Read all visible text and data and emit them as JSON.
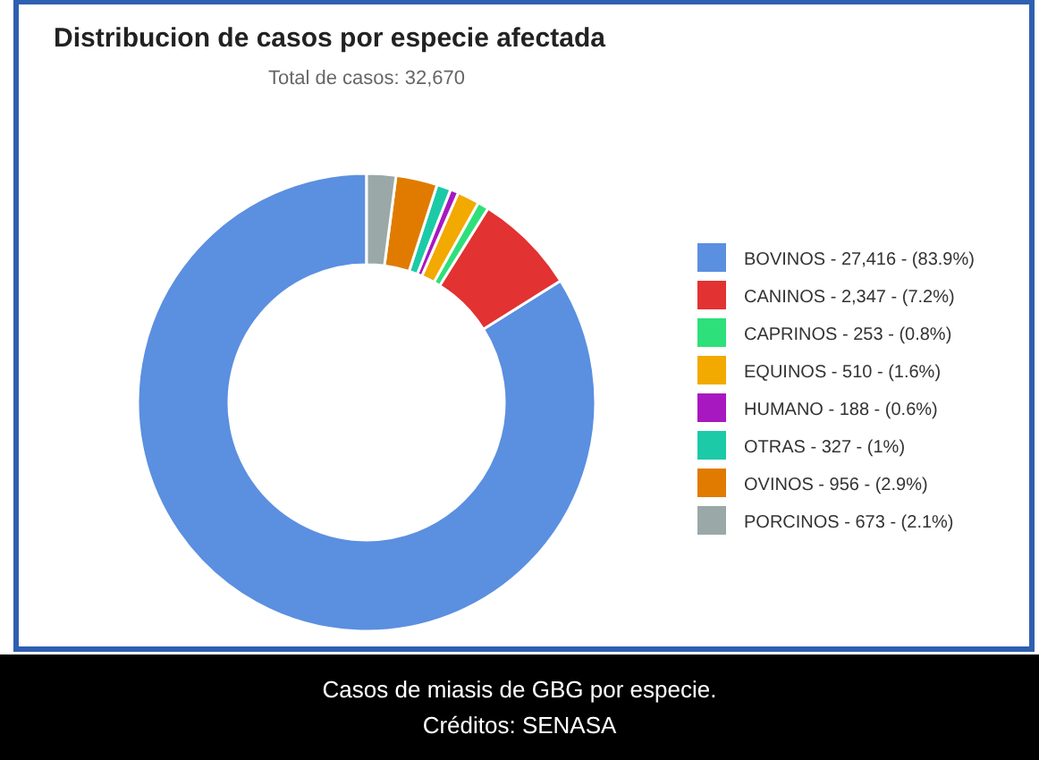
{
  "chart_data": {
    "type": "donut",
    "title": "Distribucion de casos por especie afectada",
    "subtitle": "Total de casos: 32,670",
    "categories": [
      "BOVINOS",
      "CANINOS",
      "CAPRINOS",
      "EQUINOS",
      "HUMANO",
      "OTRAS",
      "OVINOS",
      "PORCINOS"
    ],
    "value_labels": [
      "27,416 - (83.9%)",
      "2,347 - (7.2%)",
      "253 - (0.8%)",
      "510 - (1.6%)",
      "188 - (0.6%)",
      "327 - (1%)",
      "956 - (2.9%)",
      "673 - (2.1%)"
    ],
    "values": [
      27416,
      2347,
      253,
      510,
      188,
      327,
      956,
      673
    ],
    "colors": [
      "#5b8fe0",
      "#e23232",
      "#2ee07a",
      "#f2a900",
      "#a818c0",
      "#1ccaa8",
      "#e07b00",
      "#9aa8a8"
    ],
    "legend": "right",
    "annotations": [
      "Casos de miasis de GBG por especie.",
      "Créditos: SENASA"
    ]
  }
}
